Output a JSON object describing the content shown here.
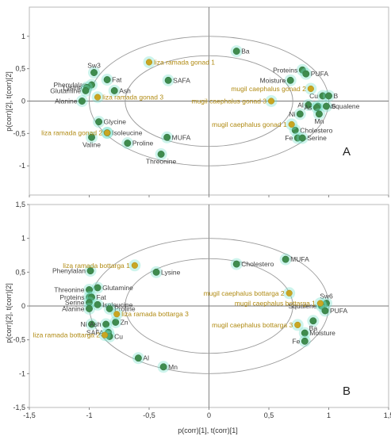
{
  "figure": {
    "y_axis_label": "p(corr)[2], t(corr)[2]",
    "x_axis_label": "p(corr)[1], t(corr)[1]"
  },
  "chart_data": [
    {
      "type": "scatter",
      "panel_label": "A",
      "xlim": [
        -1.5,
        1.5
      ],
      "ylim": [
        -1.45,
        1.45
      ],
      "x_ticks": [
        -1.5,
        -1,
        -0.5,
        0,
        0.5,
        1,
        1.5
      ],
      "y_ticks": [
        -1,
        -0.5,
        0,
        0.5,
        1
      ],
      "grid": false,
      "ellipses": [
        {
          "rx": 1.0,
          "ry": 1.0
        },
        {
          "rx": 0.7,
          "ry": 0.7
        }
      ],
      "colors": {
        "variable": "#3f8c4e",
        "observation": "#c9a622",
        "halo": "#6fe0c8"
      },
      "series": [
        {
          "kind": "variable",
          "points": [
            {
              "label": "Ba",
              "x": 0.23,
              "y": 0.77,
              "pos": "right"
            },
            {
              "label": "Proteins",
              "x": 0.78,
              "y": 0.48,
              "pos": "left"
            },
            {
              "label": "PUFA",
              "x": 0.81,
              "y": 0.42,
              "pos": "right"
            },
            {
              "label": "Moisture",
              "x": 0.68,
              "y": 0.32,
              "pos": "left"
            },
            {
              "label": "Cu",
              "x": 0.95,
              "y": 0.08,
              "pos": "left"
            },
            {
              "label": "B",
              "x": 1.0,
              "y": 0.08,
              "pos": "right"
            },
            {
              "label": "Al",
              "x": 0.83,
              "y": -0.06,
              "pos": "left"
            },
            {
              "label": "Sw6",
              "x": 0.91,
              "y": -0.08,
              "pos": "right"
            },
            {
              "label": "Squalene",
              "x": 0.98,
              "y": -0.08,
              "pos": "right"
            },
            {
              "label": "As",
              "x": 0.9,
              "y": -0.1,
              "pos": "left"
            },
            {
              "label": "Ni",
              "x": 0.76,
              "y": -0.2,
              "pos": "left"
            },
            {
              "label": "Mn",
              "x": 0.92,
              "y": -0.2,
              "pos": "below"
            },
            {
              "label": "Cholestero",
              "x": 0.72,
              "y": -0.45,
              "pos": "right"
            },
            {
              "label": "Fe",
              "x": 0.74,
              "y": -0.57,
              "pos": "left"
            },
            {
              "label": "Serine",
              "x": 0.78,
              "y": -0.57,
              "pos": "right"
            },
            {
              "label": "Sw3",
              "x": -0.96,
              "y": 0.44,
              "pos": "above"
            },
            {
              "label": "Phenylalan",
              "x": -0.98,
              "y": 0.25,
              "pos": "left"
            },
            {
              "label": "Fat",
              "x": -0.85,
              "y": 0.33,
              "pos": "right"
            },
            {
              "label": "Lysine",
              "x": -1.02,
              "y": 0.21,
              "pos": "left"
            },
            {
              "label": "Glutamine",
              "x": -1.03,
              "y": 0.16,
              "pos": "left"
            },
            {
              "label": "Ash",
              "x": -0.79,
              "y": 0.16,
              "pos": "right"
            },
            {
              "label": "Alanine",
              "x": -1.06,
              "y": 0.0,
              "pos": "left"
            },
            {
              "label": "SAFA",
              "x": -0.34,
              "y": 0.32,
              "pos": "right"
            },
            {
              "label": "Glycine",
              "x": -0.92,
              "y": -0.32,
              "pos": "right"
            },
            {
              "label": "Isoleucine",
              "x": -0.85,
              "y": -0.49,
              "pos": "right"
            },
            {
              "label": "Valine",
              "x": -0.98,
              "y": -0.56,
              "pos": "below"
            },
            {
              "label": "Proline",
              "x": -0.68,
              "y": -0.65,
              "pos": "right"
            },
            {
              "label": "MUFA",
              "x": -0.35,
              "y": -0.56,
              "pos": "right"
            },
            {
              "label": "Threonine",
              "x": -0.4,
              "y": -0.82,
              "pos": "below"
            }
          ]
        },
        {
          "kind": "observation",
          "points": [
            {
              "label": "liza ramada gonad 1",
              "x": -0.5,
              "y": 0.6,
              "pos": "right"
            },
            {
              "label": "liza ramada gonad 3",
              "x": -0.93,
              "y": 0.06,
              "pos": "right"
            },
            {
              "label": "liza ramada gonad 2",
              "x": -0.85,
              "y": -0.49,
              "pos": "left"
            },
            {
              "label": "mugil caephalus gonad 2",
              "x": 0.85,
              "y": 0.19,
              "pos": "left"
            },
            {
              "label": "mugil caephalus gonad 3",
              "x": 0.52,
              "y": 0.0,
              "pos": "left"
            },
            {
              "label": "mugil caephalus gonad 1",
              "x": 0.69,
              "y": -0.36,
              "pos": "left"
            }
          ]
        }
      ]
    },
    {
      "type": "scatter",
      "panel_label": "B",
      "xlim": [
        -1.5,
        1.5
      ],
      "ylim": [
        -1.5,
        1.5
      ],
      "x_ticks": [
        -1.5,
        -1,
        -0.5,
        0,
        0.5,
        1,
        1.5
      ],
      "x_tick_labels": [
        "-1,5",
        "-1",
        "-0,5",
        "0",
        "0,5",
        "1",
        "1,5"
      ],
      "y_ticks": [
        -1.5,
        -1,
        -0.5,
        0,
        0.5,
        1,
        1.5
      ],
      "grid": false,
      "ellipses": [
        {
          "rx": 1.0,
          "ry": 1.0
        },
        {
          "rx": 0.7,
          "ry": 0.7
        }
      ],
      "colors": {
        "variable": "#3f8c4e",
        "observation": "#c9a622",
        "halo": "#6fe0c8"
      },
      "series": [
        {
          "kind": "variable",
          "points": [
            {
              "label": "Cholestero",
              "x": 0.23,
              "y": 0.62,
              "pos": "right"
            },
            {
              "label": "MUFA",
              "x": 0.64,
              "y": 0.69,
              "pos": "right"
            },
            {
              "label": "Lysine",
              "x": -0.44,
              "y": 0.5,
              "pos": "right"
            },
            {
              "label": "Phenylalan",
              "x": -0.99,
              "y": 0.52,
              "pos": "left"
            },
            {
              "label": "Glutamine",
              "x": -0.93,
              "y": 0.27,
              "pos": "right"
            },
            {
              "label": "Threonine",
              "x": -1.0,
              "y": 0.24,
              "pos": "left"
            },
            {
              "label": "Proteins",
              "x": -1.0,
              "y": 0.13,
              "pos": "left"
            },
            {
              "label": "Fat",
              "x": -0.98,
              "y": 0.13,
              "pos": "right"
            },
            {
              "label": "Serine",
              "x": -1.0,
              "y": 0.05,
              "pos": "left"
            },
            {
              "label": "Isoleucine",
              "x": -0.93,
              "y": 0.02,
              "pos": "right"
            },
            {
              "label": "Alanine",
              "x": -1.0,
              "y": -0.04,
              "pos": "left"
            },
            {
              "label": "Proline",
              "x": -0.83,
              "y": -0.04,
              "pos": "right"
            },
            {
              "label": "Ni",
              "x": -0.98,
              "y": -0.27,
              "pos": "left"
            },
            {
              "label": "Ash",
              "x": -0.86,
              "y": -0.27,
              "pos": "left"
            },
            {
              "label": "Zn",
              "x": -0.78,
              "y": -0.24,
              "pos": "right"
            },
            {
              "label": "SAFA",
              "x": -0.84,
              "y": -0.39,
              "pos": "left"
            },
            {
              "label": "Cu",
              "x": -0.83,
              "y": -0.45,
              "pos": "right"
            },
            {
              "label": "Al",
              "x": -0.59,
              "y": -0.77,
              "pos": "right"
            },
            {
              "label": "Mn",
              "x": -0.38,
              "y": -0.9,
              "pos": "right"
            },
            {
              "label": "Sw6",
              "x": 0.98,
              "y": 0.04,
              "pos": "above"
            },
            {
              "label": "Squalene",
              "x": 0.94,
              "y": 0.0,
              "pos": "left"
            },
            {
              "label": "PUFA",
              "x": 0.97,
              "y": -0.07,
              "pos": "right"
            },
            {
              "label": "Ba",
              "x": 0.87,
              "y": -0.22,
              "pos": "below"
            },
            {
              "label": "Moisture",
              "x": 0.8,
              "y": -0.4,
              "pos": "right"
            },
            {
              "label": "Fe",
              "x": 0.8,
              "y": -0.52,
              "pos": "left"
            }
          ]
        },
        {
          "kind": "observation",
          "points": [
            {
              "label": "liza ramada bottarga 1",
              "x": -0.62,
              "y": 0.6,
              "pos": "left"
            },
            {
              "label": "liza ramada bottarga 3",
              "x": -0.77,
              "y": -0.12,
              "pos": "right"
            },
            {
              "label": "liza ramada bottarga 2",
              "x": -0.87,
              "y": -0.43,
              "pos": "left"
            },
            {
              "label": "mugil caephalus bottarga 2",
              "x": 0.67,
              "y": 0.19,
              "pos": "left"
            },
            {
              "label": "mugil caephalus bottarga 1",
              "x": 0.93,
              "y": 0.04,
              "pos": "left"
            },
            {
              "label": "mugil caephalus bottarga 3",
              "x": 0.74,
              "y": -0.28,
              "pos": "left"
            }
          ]
        }
      ]
    }
  ]
}
